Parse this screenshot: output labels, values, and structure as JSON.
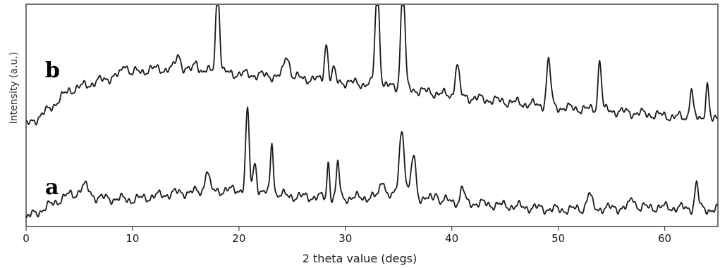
{
  "chart_data": {
    "type": "line",
    "title": "",
    "xlabel": "2 theta value (degs)",
    "ylabel": "Intensity (a.u.)",
    "xlim": [
      0,
      65
    ],
    "x_ticks": [
      "0",
      "10",
      "20",
      "30",
      "40",
      "50",
      "60"
    ],
    "y_ticks_shown": false,
    "grid": false,
    "legend": "none",
    "colors": {
      "trace": "#1a1a1a",
      "frame": "#444444"
    },
    "series": [
      {
        "name": "b",
        "offset": 1.0,
        "baseline": [
          [
            0,
            0.0
          ],
          [
            2,
            0.18
          ],
          [
            4,
            0.42
          ],
          [
            8,
            0.58
          ],
          [
            12,
            0.68
          ],
          [
            16,
            0.66
          ],
          [
            20,
            0.62
          ],
          [
            25,
            0.58
          ],
          [
            30,
            0.52
          ],
          [
            35,
            0.46
          ],
          [
            40,
            0.36
          ],
          [
            45,
            0.29
          ],
          [
            50,
            0.22
          ],
          [
            55,
            0.18
          ],
          [
            60,
            0.12
          ],
          [
            65,
            0.06
          ]
        ],
        "peaks": [
          {
            "x": 9.3,
            "h": 0.14,
            "w": 0.4
          },
          {
            "x": 14.3,
            "h": 0.18,
            "w": 0.45
          },
          {
            "x": 16.0,
            "h": 0.12,
            "w": 0.3
          },
          {
            "x": 18.0,
            "h": 1.05,
            "w": 0.32
          },
          {
            "x": 24.5,
            "h": 0.26,
            "w": 0.45
          },
          {
            "x": 28.2,
            "h": 0.45,
            "w": 0.3
          },
          {
            "x": 28.9,
            "h": 0.14,
            "w": 0.25
          },
          {
            "x": 33.0,
            "h": 1.22,
            "w": 0.36
          },
          {
            "x": 35.4,
            "h": 1.32,
            "w": 0.34
          },
          {
            "x": 40.5,
            "h": 0.38,
            "w": 0.35
          },
          {
            "x": 49.1,
            "h": 0.55,
            "w": 0.35
          },
          {
            "x": 53.9,
            "h": 0.6,
            "w": 0.3
          },
          {
            "x": 62.5,
            "h": 0.36,
            "w": 0.3
          },
          {
            "x": 64.0,
            "h": 0.45,
            "w": 0.28
          }
        ]
      },
      {
        "name": "a",
        "offset": 0.0,
        "baseline": [
          [
            0,
            -0.1
          ],
          [
            1.5,
            0.0
          ],
          [
            4,
            0.18
          ],
          [
            7,
            0.14
          ],
          [
            10,
            0.12
          ],
          [
            14,
            0.2
          ],
          [
            20,
            0.24
          ],
          [
            25,
            0.16
          ],
          [
            30,
            0.14
          ],
          [
            35,
            0.16
          ],
          [
            40,
            0.1
          ],
          [
            45,
            0.05
          ],
          [
            50,
            0.0
          ],
          [
            55,
            0.02
          ],
          [
            60,
            0.03
          ],
          [
            65,
            0.0
          ]
        ],
        "peaks": [
          {
            "x": 5.5,
            "h": 0.12,
            "w": 0.8
          },
          {
            "x": 17.0,
            "h": 0.26,
            "w": 0.35
          },
          {
            "x": 20.8,
            "h": 0.95,
            "w": 0.3
          },
          {
            "x": 21.5,
            "h": 0.35,
            "w": 0.3
          },
          {
            "x": 23.1,
            "h": 0.62,
            "w": 0.25
          },
          {
            "x": 28.4,
            "h": 0.45,
            "w": 0.2
          },
          {
            "x": 29.3,
            "h": 0.42,
            "w": 0.25
          },
          {
            "x": 33.5,
            "h": 0.22,
            "w": 0.4
          },
          {
            "x": 35.3,
            "h": 0.8,
            "w": 0.45
          },
          {
            "x": 36.4,
            "h": 0.5,
            "w": 0.4
          },
          {
            "x": 38.5,
            "h": 0.12,
            "w": 0.2
          },
          {
            "x": 41.0,
            "h": 0.18,
            "w": 0.3
          },
          {
            "x": 52.9,
            "h": 0.18,
            "w": 0.4
          },
          {
            "x": 57.0,
            "h": 0.12,
            "w": 0.4
          },
          {
            "x": 63.0,
            "h": 0.3,
            "w": 0.3
          }
        ]
      }
    ]
  }
}
